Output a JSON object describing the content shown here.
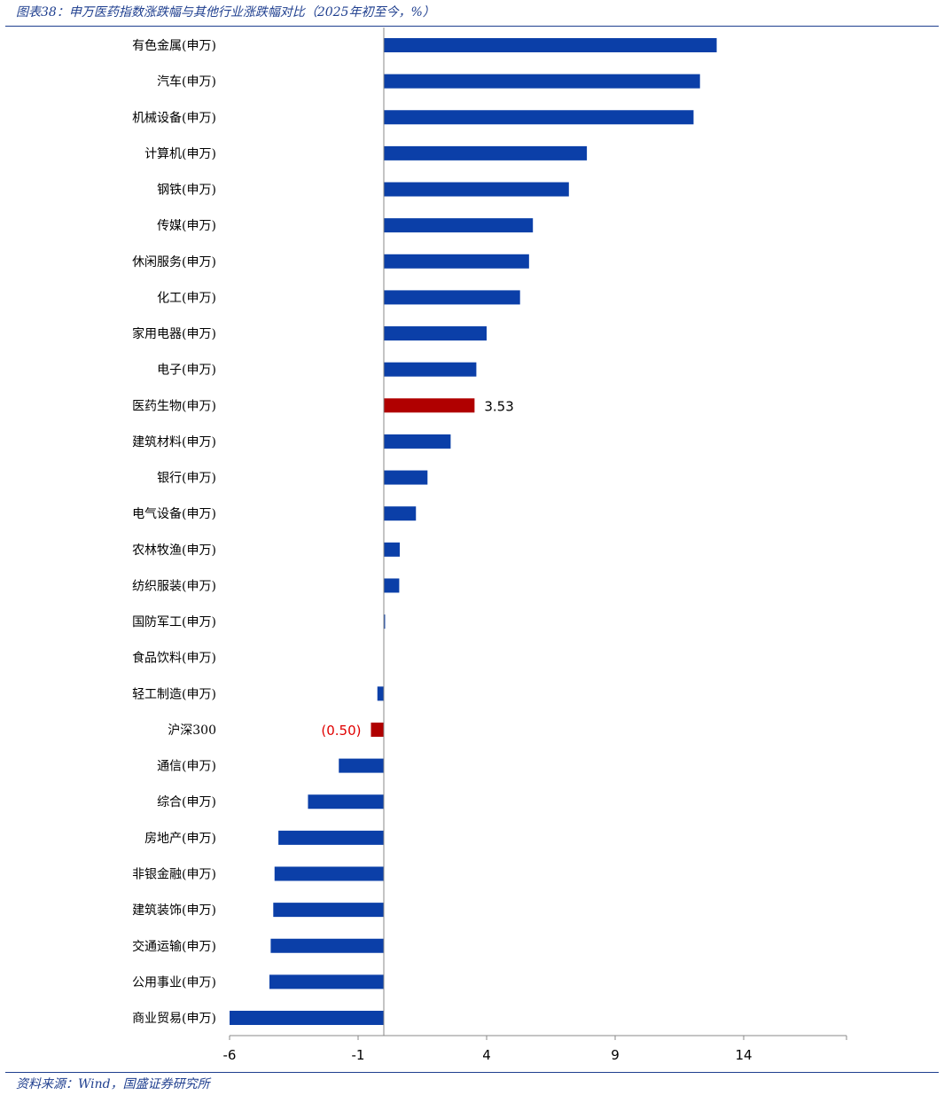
{
  "header": {
    "title": "图表38：申万医药指数涨跌幅与其他行业涨跌幅对比（2025年初至今，%）"
  },
  "footer": {
    "source": "资料来源：Wind，国盛证券研究所"
  },
  "colors": {
    "bar": "#0b3fa8",
    "highlight": "#b00000",
    "negative_label": "#e00000",
    "rule": "#1f3f8f"
  },
  "chart_data": {
    "type": "bar",
    "orientation": "horizontal",
    "categories": [
      "有色金属(申万)",
      "汽车(申万)",
      "机械设备(申万)",
      "计算机(申万)",
      "钢铁(申万)",
      "传媒(申万)",
      "休闲服务(申万)",
      "化工(申万)",
      "家用电器(申万)",
      "电子(申万)",
      "医药生物(申万)",
      "建筑材料(申万)",
      "银行(申万)",
      "电气设备(申万)",
      "农林牧渔(申万)",
      "纺织服装(申万)",
      "国防军工(申万)",
      "食品饮料(申万)",
      "轻工制造(申万)",
      "沪深300",
      "通信(申万)",
      "综合(申万)",
      "房地产(申万)",
      "非银金融(申万)",
      "建筑装饰(申万)",
      "交通运输(申万)",
      "公用事业(申万)",
      "商业贸易(申万)"
    ],
    "values": [
      12.95,
      12.3,
      12.05,
      7.9,
      7.2,
      5.8,
      5.65,
      5.3,
      4.0,
      3.6,
      3.53,
      2.6,
      1.7,
      1.25,
      0.62,
      0.6,
      0.05,
      0.0,
      -0.25,
      -0.5,
      -1.75,
      -2.95,
      -4.1,
      -4.25,
      -4.3,
      -4.4,
      -4.45,
      -6.0
    ],
    "highlighted": [
      "医药生物(申万)",
      "沪深300"
    ],
    "data_labels": [
      {
        "category": "医药生物(申万)",
        "text": "3.53"
      },
      {
        "category": "沪深300",
        "text": "(0.50)"
      }
    ],
    "xticks": [
      "-6",
      "-1",
      "4",
      "9",
      "14"
    ],
    "xtick_values": [
      -6,
      -1,
      4,
      9,
      14
    ],
    "xlim": [
      -6,
      18
    ],
    "grid": false,
    "legend": "none"
  }
}
